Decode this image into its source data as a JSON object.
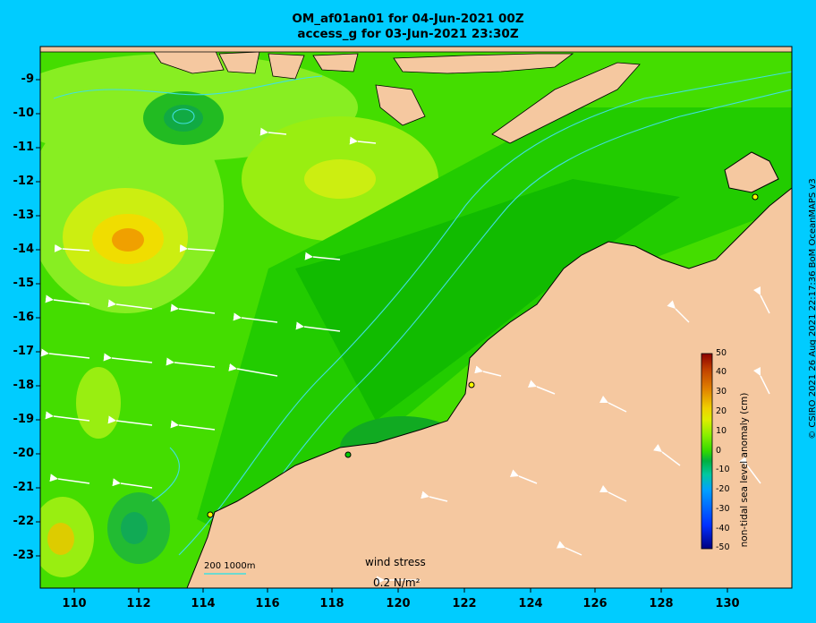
{
  "title_line1": "OM_af01an01 for 04-Jun-2021 00Z",
  "title_line2": "access_g for 03-Jun-2021 23:30Z",
  "credit": "© CSIRO 2021  26 Aug 2021 22:17:36 BoM OceanMAPS v3",
  "colorbar": {
    "label": "non-tidal sea level anomaly (cm)",
    "ticks": [
      "50",
      "40",
      "30",
      "20",
      "10",
      "0",
      "-10",
      "-20",
      "-30",
      "-40",
      "-50"
    ]
  },
  "y_axis_labels": [
    "-9",
    "-10",
    "-11",
    "-12",
    "-13",
    "-14",
    "-15",
    "-16",
    "-17",
    "-18",
    "-19",
    "-20",
    "-21",
    "-22",
    "-23"
  ],
  "x_axis_labels": [
    "110",
    "112",
    "114",
    "116",
    "118",
    "120",
    "122",
    "124",
    "126",
    "128",
    "130"
  ],
  "wind_legend": {
    "title": "wind stress",
    "value": "0.2 N/m²"
  },
  "depth_scale_label": "200  1000m",
  "colors": {
    "background": "#00ccff",
    "land": "#f5c8a0"
  }
}
